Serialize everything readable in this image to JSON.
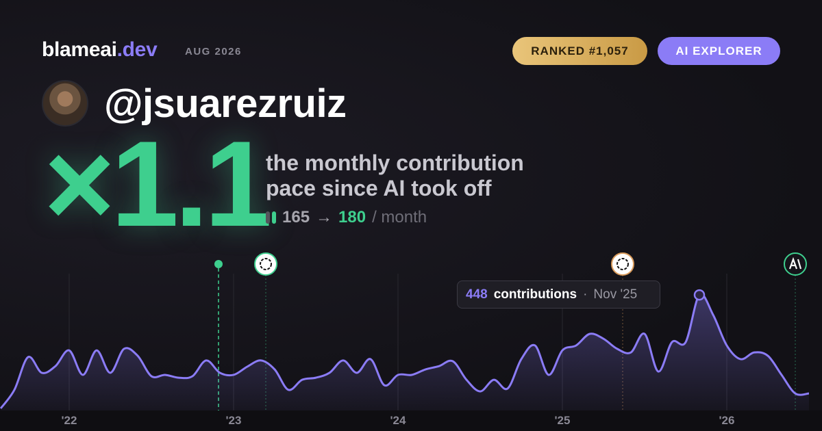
{
  "header": {
    "brand": "blameai",
    "brand_suffix": ".dev",
    "date": "AUG 2026",
    "badges": [
      "RANKED #1,057",
      "AI EXPLORER"
    ]
  },
  "profile": {
    "username": "@jsuarezruiz"
  },
  "stat": {
    "multiplier": "×1.1",
    "description": [
      "the monthly contribution",
      "pace since AI took off"
    ],
    "before": "165",
    "arrow": "→",
    "after": "180",
    "unit": "/ month"
  },
  "chart_data": {
    "type": "area",
    "color": "#8b7cf6",
    "x": [
      -5,
      -4,
      -3,
      -2,
      -1,
      0,
      1,
      2,
      3,
      4,
      5,
      6,
      7,
      8,
      9,
      10,
      11,
      12,
      13,
      14,
      15,
      16,
      17,
      18,
      19,
      20,
      21,
      22,
      23,
      24,
      25,
      26,
      27,
      28,
      29,
      30,
      31,
      32,
      33,
      34,
      35,
      36,
      37,
      38,
      39,
      40,
      41,
      42,
      43,
      44,
      45,
      46,
      47,
      48,
      49,
      50,
      51,
      52,
      53,
      54
    ],
    "values": [
      8,
      80,
      207,
      146,
      172,
      233,
      138,
      233,
      146,
      239,
      212,
      133,
      138,
      127,
      133,
      194,
      146,
      138,
      170,
      194,
      159,
      80,
      119,
      127,
      146,
      194,
      146,
      199,
      98,
      138,
      138,
      159,
      172,
      191,
      119,
      74,
      119,
      85,
      199,
      252,
      138,
      233,
      252,
      297,
      278,
      239,
      225,
      297,
      151,
      265,
      265,
      448,
      371,
      252,
      199,
      225,
      212,
      138,
      66,
      66
    ],
    "xlim": [
      -5.05,
      54.95
    ],
    "ylim": [
      0,
      610
    ],
    "xticks": [
      {
        "value": 0,
        "label": "'22"
      },
      {
        "value": 12,
        "label": "'23"
      },
      {
        "value": 24,
        "label": "'24"
      },
      {
        "value": 36,
        "label": "'25"
      },
      {
        "value": 48,
        "label": "'26"
      }
    ],
    "tooltip": {
      "label": "contributions",
      "separator": "·",
      "date": "Nov '25"
    }
  }
}
